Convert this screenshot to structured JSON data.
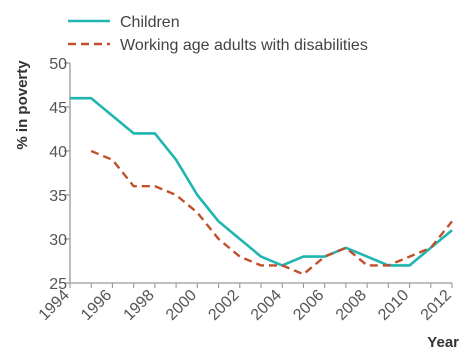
{
  "chart_data": {
    "type": "line",
    "x": [
      1994,
      1995,
      1996,
      1997,
      1998,
      1999,
      2000,
      2001,
      2002,
      2003,
      2004,
      2005,
      2006,
      2007,
      2008,
      2009,
      2010,
      2011,
      2012
    ],
    "series": [
      {
        "name": "Children",
        "color": "#1fb5b0",
        "style": "solid",
        "values": [
          46,
          46,
          44,
          42,
          42,
          39,
          35,
          32,
          30,
          28,
          27,
          28,
          28,
          29,
          28,
          27,
          27,
          29,
          31
        ]
      },
      {
        "name": "Working age adults with disabilities",
        "color": "#c0502b",
        "style": "dashed",
        "values": [
          null,
          40,
          39,
          36,
          36,
          35,
          33,
          30,
          28,
          27,
          27,
          26,
          28,
          29,
          27,
          27,
          28,
          29,
          32
        ]
      }
    ],
    "xlabel": "Year",
    "ylabel": "% in poverty",
    "ylim": [
      25,
      50
    ],
    "yticks": [
      "25",
      "30",
      "35",
      "40",
      "45",
      "50"
    ],
    "xticks": [
      "1994",
      "1996",
      "1998",
      "2000",
      "2002",
      "2004",
      "2006",
      "2008",
      "2010",
      "2012"
    ],
    "grid": false,
    "legend": "top-left",
    "axis_color": "#999999"
  }
}
